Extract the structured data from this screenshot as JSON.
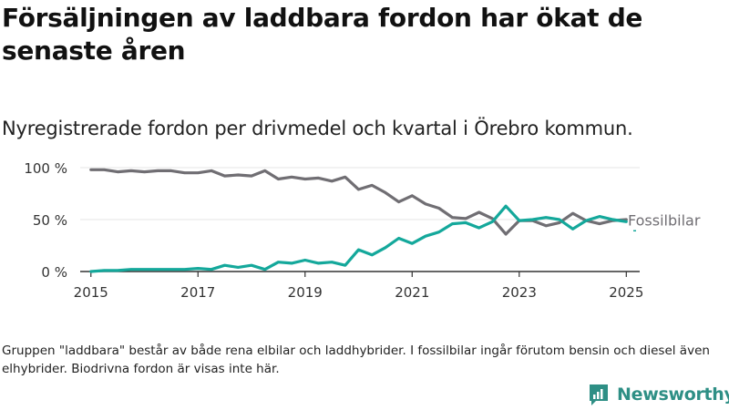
{
  "header": {
    "title": "Försäljningen av laddbara fordon har ökat de senaste åren",
    "subtitle": "Nyregistrerade fordon per drivmedel och kvartal i Örebro kommun."
  },
  "footer": {
    "note": "Gruppen \"laddbara\" består av både rena elbilar och laddhybrider. I fossilbilar ingår förutom bensin och diesel även elhybrider. Biodrivna fordon är visas inte här.",
    "brand": "Newsworthy"
  },
  "chart_data": {
    "type": "line",
    "x_unit": "year",
    "x": [
      2015.0,
      2015.25,
      2015.5,
      2015.75,
      2016.0,
      2016.25,
      2016.5,
      2016.75,
      2017.0,
      2017.25,
      2017.5,
      2017.75,
      2018.0,
      2018.25,
      2018.5,
      2018.75,
      2019.0,
      2019.25,
      2019.5,
      2019.75,
      2020.0,
      2020.25,
      2020.5,
      2020.75,
      2021.0,
      2021.25,
      2021.5,
      2021.75,
      2022.0,
      2022.25,
      2022.5,
      2022.75,
      2023.0,
      2023.25,
      2023.5,
      2023.75,
      2024.0,
      2024.25,
      2024.5,
      2024.75,
      2025.0
    ],
    "series": [
      {
        "name": "Fossilbilar",
        "color": "#706e73",
        "values": [
          98,
          98,
          96,
          97,
          96,
          97,
          97,
          95,
          95,
          97,
          92,
          93,
          92,
          97,
          89,
          91,
          89,
          90,
          87,
          91,
          79,
          83,
          76,
          67,
          73,
          65,
          61,
          52,
          51,
          57,
          51,
          36,
          49,
          49,
          44,
          47,
          56,
          49,
          46,
          49,
          50
        ]
      },
      {
        "name": "",
        "color": "#14a89b",
        "values": [
          0,
          1,
          1,
          2,
          2,
          2,
          2,
          2,
          3,
          2,
          6,
          4,
          6,
          2,
          9,
          8,
          11,
          8,
          9,
          6,
          21,
          16,
          23,
          32,
          27,
          34,
          38,
          46,
          47,
          42,
          48,
          63,
          49,
          50,
          52,
          50,
          41,
          49,
          53,
          50,
          48
        ]
      }
    ],
    "ylim": [
      0,
      100
    ],
    "yticks": [
      0,
      50,
      100
    ],
    "ytick_labels": [
      "0 %",
      "50 %",
      "100 %"
    ],
    "xticks": [
      2015,
      2017,
      2019,
      2021,
      2023,
      2025
    ],
    "xtick_labels": [
      "2015",
      "2017",
      "2019",
      "2021",
      "2023",
      "2025"
    ],
    "xlim": [
      2014.8,
      2025.25
    ],
    "grid": true,
    "series_label": "Fossilbilar"
  }
}
